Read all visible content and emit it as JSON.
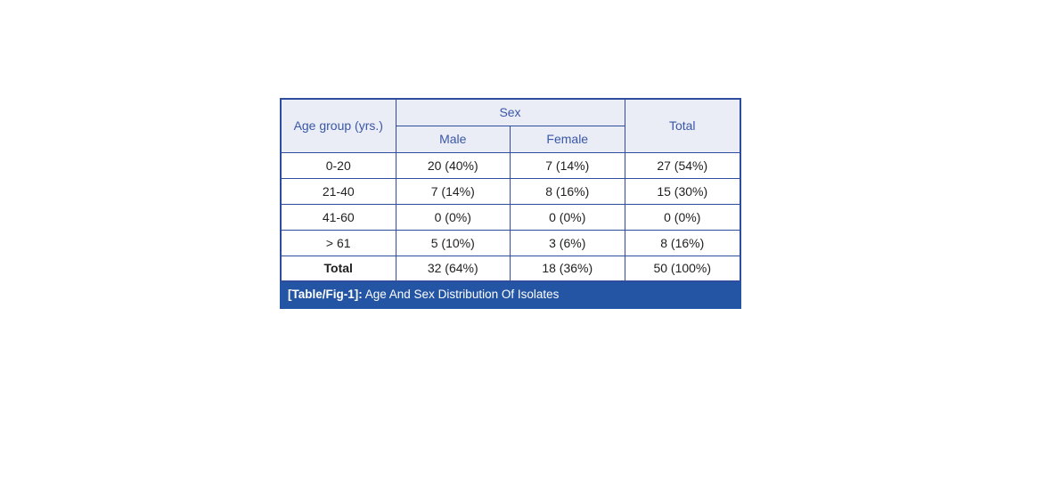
{
  "table": {
    "header": {
      "age_group_label": "Age group (yrs.)",
      "sex_group_label": "Sex",
      "male_label": "Male",
      "female_label": "Female",
      "total_label": "Total"
    },
    "rows": [
      {
        "age_group": "0-20",
        "male": "20 (40%)",
        "female": "7 (14%)",
        "total": "27 (54%)",
        "is_total": false
      },
      {
        "age_group": "21-40",
        "male": "7 (14%)",
        "female": "8 (16%)",
        "total": "15 (30%)",
        "is_total": false
      },
      {
        "age_group": "41-60",
        "male": "0 (0%)",
        "female": "0 (0%)",
        "total": "0 (0%)",
        "is_total": false
      },
      {
        "age_group": "> 61",
        "male": "5 (10%)",
        "female": "3 (6%)",
        "total": "8 (16%)",
        "is_total": false
      },
      {
        "age_group": "Total",
        "male": "32 (64%)",
        "female": "18 (36%)",
        "total": "50 (100%)",
        "is_total": true
      }
    ],
    "caption": {
      "tag": "[Table/Fig-1]:",
      "text": " Age And Sex Distribution Of Isolates"
    },
    "colors": {
      "header_bg": "#eaedf6",
      "header_text": "#3a57a7",
      "border": "#2e4d9e",
      "body_text": "#1f1f1f",
      "caption_bg": "#2355a4",
      "caption_text": "#ffffff"
    }
  },
  "chart_data": {
    "type": "table",
    "title": "[Table/Fig-1]: Age And Sex Distribution Of Isolates",
    "columns": [
      "Age group (yrs.)",
      "Male",
      "Female",
      "Total"
    ],
    "column_groups": [
      {
        "label": "Sex",
        "spans": [
          "Male",
          "Female"
        ]
      }
    ],
    "rows": [
      [
        "0-20",
        "20 (40%)",
        "7 (14%)",
        "27 (54%)"
      ],
      [
        "21-40",
        "7 (14%)",
        "8 (16%)",
        "15 (30%)"
      ],
      [
        "41-60",
        "0 (0%)",
        "0 (0%)",
        "0 (0%)"
      ],
      [
        "> 61",
        "5 (10%)",
        "3 (6%)",
        "8 (16%)"
      ],
      [
        "Total",
        "32 (64%)",
        "18 (36%)",
        "50 (100%)"
      ]
    ]
  }
}
